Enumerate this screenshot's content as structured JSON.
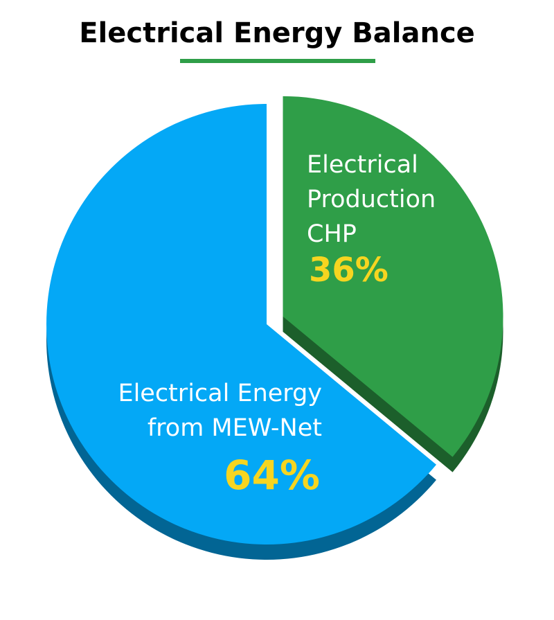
{
  "chart_data": {
    "type": "pie",
    "title": "Electrical Energy Balance",
    "categories": [
      "Electrical Production CHP",
      "Electrical Energy from MEW-Net"
    ],
    "values": [
      36,
      64
    ],
    "value_labels": [
      "36%",
      "64%"
    ],
    "colors": [
      "#2f9e48",
      "#04a8f6"
    ]
  }
}
